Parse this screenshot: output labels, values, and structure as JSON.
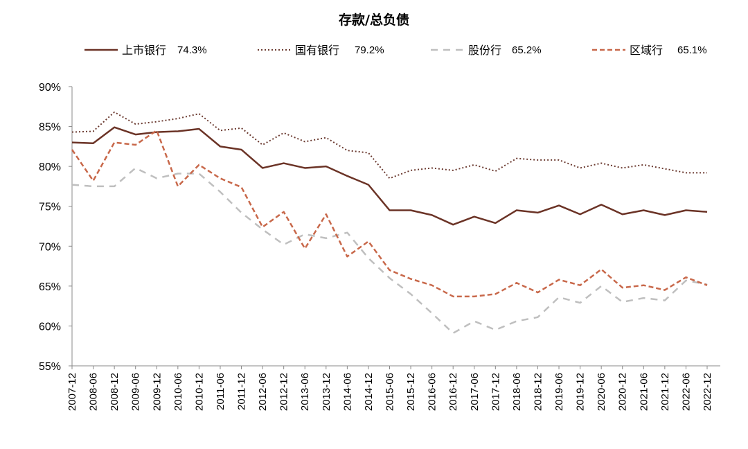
{
  "chart_data": {
    "type": "line",
    "title": "存款/总负债",
    "ylim": [
      55,
      90
    ],
    "yticks": [
      "55%",
      "60%",
      "65%",
      "70%",
      "75%",
      "80%",
      "85%",
      "90%"
    ],
    "ytick_values": [
      55,
      60,
      65,
      70,
      75,
      80,
      85,
      90
    ],
    "grid": false,
    "legend_placement": "top",
    "categories": [
      "2007-12",
      "2008-06",
      "2008-12",
      "2009-06",
      "2009-12",
      "2010-06",
      "2010-12",
      "2011-06",
      "2011-12",
      "2012-06",
      "2012-12",
      "2013-06",
      "2013-12",
      "2014-06",
      "2014-12",
      "2015-06",
      "2015-12",
      "2016-06",
      "2016-12",
      "2017-06",
      "2017-12",
      "2018-06",
      "2018-12",
      "2019-06",
      "2019-12",
      "2020-06",
      "2020-12",
      "2021-06",
      "2021-12",
      "2022-06",
      "2022-12"
    ],
    "series": [
      {
        "name": "上市银行",
        "legend_value": "74.3%",
        "color": "#6b3326",
        "style": "solid",
        "values": [
          83.0,
          82.9,
          84.9,
          84.0,
          84.3,
          84.4,
          84.7,
          82.5,
          82.1,
          79.8,
          80.4,
          79.8,
          80.0,
          78.8,
          77.7,
          74.5,
          74.5,
          73.9,
          72.7,
          73.7,
          72.9,
          74.5,
          74.2,
          75.1,
          74.0,
          75.2,
          74.0,
          74.5,
          73.9,
          74.5,
          74.3
        ]
      },
      {
        "name": "国有银行",
        "legend_value": "79.2%",
        "color": "#6b3a30",
        "style": "dotted",
        "values": [
          84.3,
          84.4,
          86.8,
          85.3,
          85.6,
          86.0,
          86.6,
          84.5,
          84.8,
          82.7,
          84.2,
          83.1,
          83.6,
          82.0,
          81.7,
          78.5,
          79.5,
          79.8,
          79.5,
          80.2,
          79.4,
          81.0,
          80.8,
          80.8,
          79.8,
          80.4,
          79.8,
          80.2,
          79.7,
          79.2,
          79.2
        ]
      },
      {
        "name": "股份行",
        "legend_value": "65.2%",
        "color": "#bfbfbf",
        "style": "dashed-long",
        "values": [
          77.7,
          77.5,
          77.5,
          79.8,
          78.5,
          79.1,
          79.1,
          76.8,
          74.2,
          72.1,
          70.2,
          71.5,
          71.0,
          71.7,
          68.5,
          66.0,
          64.0,
          61.6,
          59.1,
          60.6,
          59.5,
          60.6,
          61.1,
          63.6,
          62.9,
          65.0,
          63.0,
          63.5,
          63.2,
          65.7,
          65.2
        ]
      },
      {
        "name": "区域行",
        "legend_value": "65.1%",
        "color": "#c8684a",
        "style": "dashed",
        "values": [
          82.1,
          78.2,
          83.0,
          82.7,
          84.5,
          77.5,
          80.2,
          78.5,
          77.4,
          72.4,
          74.3,
          69.7,
          74.0,
          68.7,
          70.6,
          67.0,
          65.9,
          65.1,
          63.7,
          63.7,
          64.0,
          65.4,
          64.2,
          65.8,
          65.1,
          67.1,
          64.8,
          65.1,
          64.5,
          66.1,
          65.1
        ]
      }
    ]
  }
}
